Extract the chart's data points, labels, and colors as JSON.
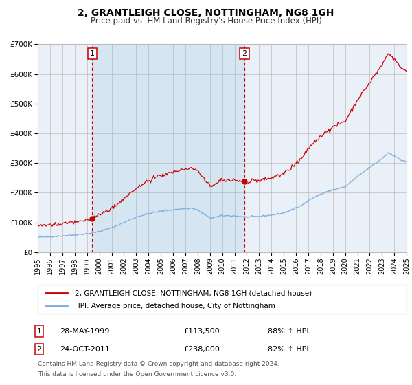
{
  "title": "2, GRANTLEIGH CLOSE, NOTTINGHAM, NG8 1GH",
  "subtitle": "Price paid vs. HM Land Registry's House Price Index (HPI)",
  "ylim": [
    0,
    700000
  ],
  "yticks": [
    0,
    100000,
    200000,
    300000,
    400000,
    500000,
    600000,
    700000
  ],
  "ytick_labels": [
    "£0",
    "£100K",
    "£200K",
    "£300K",
    "£400K",
    "£500K",
    "£600K",
    "£700K"
  ],
  "red_line_color": "#cc0000",
  "blue_line_color": "#7aacdc",
  "background_color": "#ffffff",
  "plot_bg_color": "#eaf0f8",
  "shade_color": "#d5e5f2",
  "grid_color": "#bbbbbb",
  "sale1_year": 1999.41,
  "sale1_price": 113500,
  "sale2_year": 2011.81,
  "sale2_price": 238000,
  "sale1_date": "28-MAY-1999",
  "sale1_pct": "88% ↑ HPI",
  "sale2_date": "24-OCT-2011",
  "sale2_pct": "82% ↑ HPI",
  "legend_red": "2, GRANTLEIGH CLOSE, NOTTINGHAM, NG8 1GH (detached house)",
  "legend_blue": "HPI: Average price, detached house, City of Nottingham",
  "footnote1": "Contains HM Land Registry data © Crown copyright and database right 2024.",
  "footnote2": "This data is licensed under the Open Government Licence v3.0."
}
